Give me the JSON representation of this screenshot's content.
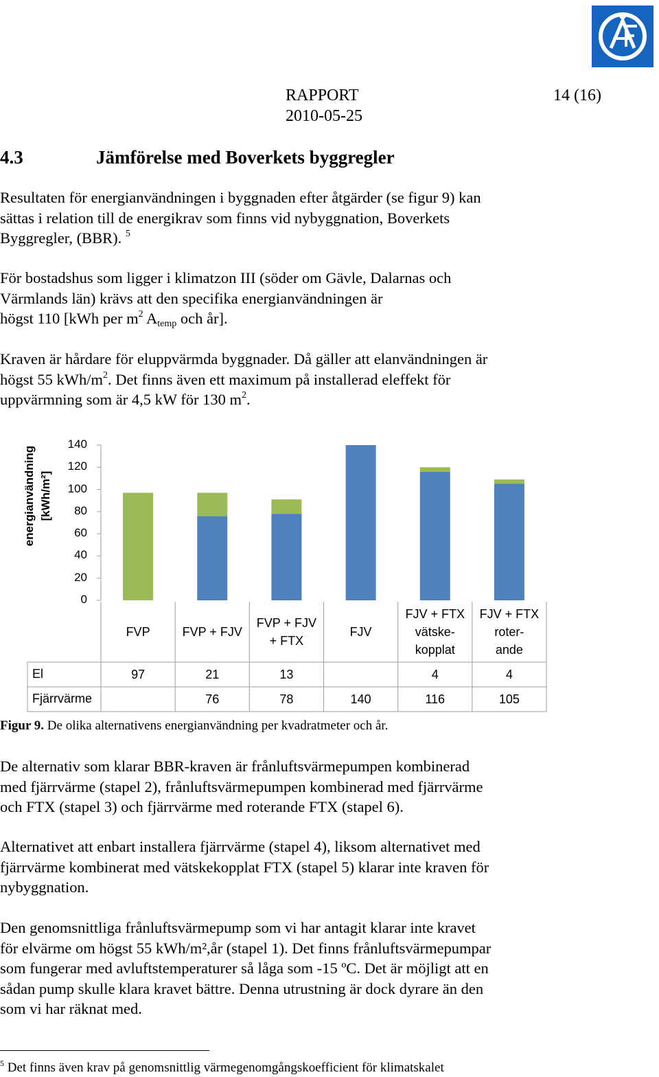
{
  "header": {
    "doc_type": "RAPPORT",
    "page": "14 (16)",
    "date": "2010-05-25"
  },
  "section": {
    "number": "4.3",
    "title": "Jämförelse med Boverkets byggregler"
  },
  "paragraphs": {
    "p1_line1": "Resultaten för energianvändningen i byggnaden efter åtgärder (se figur 9) kan",
    "p1_line2": "sättas i relation till de energikrav som finns vid nybyggnation, Boverkets",
    "p1_line3": "Byggregler, (BBR).",
    "p1_ref": "5",
    "p2_line1": "För bostadshus som ligger i klimatzon III (söder om Gävle, Dalarnas och",
    "p2_line2": "Värmlands län) krävs att den specifika energianvändningen är",
    "p2_line3a": "högst 110 [kWh per m",
    "p2_sup": "2",
    "p2_line3b": " A",
    "p2_sub": "temp",
    "p2_line3c": " och år].",
    "p3_line1": "Kraven är hårdare för eluppvärmda byggnader. Då gäller att elanvändningen är",
    "p3_line2a": "högst 55 kWh/m",
    "p3_sup1": "2",
    "p3_line2b": ". Det finns även ett maximum på installerad eleffekt för",
    "p3_line3a": "uppvärmning som är 4,5 kW för 130 m",
    "p3_sup2": "2",
    "p3_line3b": ".",
    "p4_line1": "De alternativ som klarar BBR-kraven är frånluftsvärmepumpen kombinerad",
    "p4_line2": "med fjärrvärme (stapel 2), frånluftsvärmepumpen kombinerad med fjärrvärme",
    "p4_line3": "och FTX (stapel 3) och fjärrvärme med roterande FTX (stapel 6).",
    "p5_line1": "Alternativet att enbart installera fjärrvärme (stapel 4), liksom alternativet med",
    "p5_line2": "fjärrvärme kombinerat med vätskekopplat FTX (stapel 5) klarar inte kraven för",
    "p5_line3": "nybyggnation.",
    "p6_line1": "Den genomsnittliga frånluftsvärmepump som vi har antagit klarar inte kravet",
    "p6_line2": "för elvärme om högst 55 kWh/m²,år (stapel 1). Det finns frånluftsvärmepumpar",
    "p6_line3": "som fungerar med avluftstemperaturer så låga som -15 ºC. Det är möjligt att en",
    "p6_line4": "sådan pump skulle klara kravet bättre. Denna utrustning är dock dyrare än den",
    "p6_line5": "som vi har räknat med."
  },
  "caption": {
    "label": "Figur 9.",
    "text": " De olika alternativens energianvändning per kvadratmeter och år."
  },
  "footnote": {
    "number": "5",
    "text": " Det finns även krav på genomsnittlig värmegenomgångskoefficient för klimatskalet"
  },
  "chart_data": {
    "type": "bar",
    "stacked": true,
    "title": "",
    "ylabel_line1": "energianvändning",
    "ylabel_line2": "[kWh/m²]",
    "ylim": [
      0,
      140
    ],
    "yticks": [
      "0",
      "20",
      "40",
      "60",
      "80",
      "100",
      "120",
      "140"
    ],
    "categories": [
      [
        "FVP"
      ],
      [
        "FVP + FJV"
      ],
      [
        "FVP + FJV",
        "+ FTX"
      ],
      [
        "FJV"
      ],
      [
        "FJV + FTX",
        "vätske-",
        "kopplat"
      ],
      [
        "FJV + FTX",
        "roter-",
        "ande"
      ]
    ],
    "series": [
      {
        "name": "Fjärrvärme",
        "color": "#4f81bd",
        "values": [
          0,
          76,
          78,
          140,
          116,
          105
        ],
        "labels": [
          "",
          "76",
          "78",
          "140",
          "116",
          "105"
        ]
      },
      {
        "name": "El",
        "color": "#9bbb59",
        "values": [
          97,
          21,
          13,
          0,
          4,
          4
        ],
        "labels": [
          "97",
          "21",
          "13",
          "",
          "4",
          "4"
        ]
      }
    ],
    "legend": "table below chart"
  }
}
